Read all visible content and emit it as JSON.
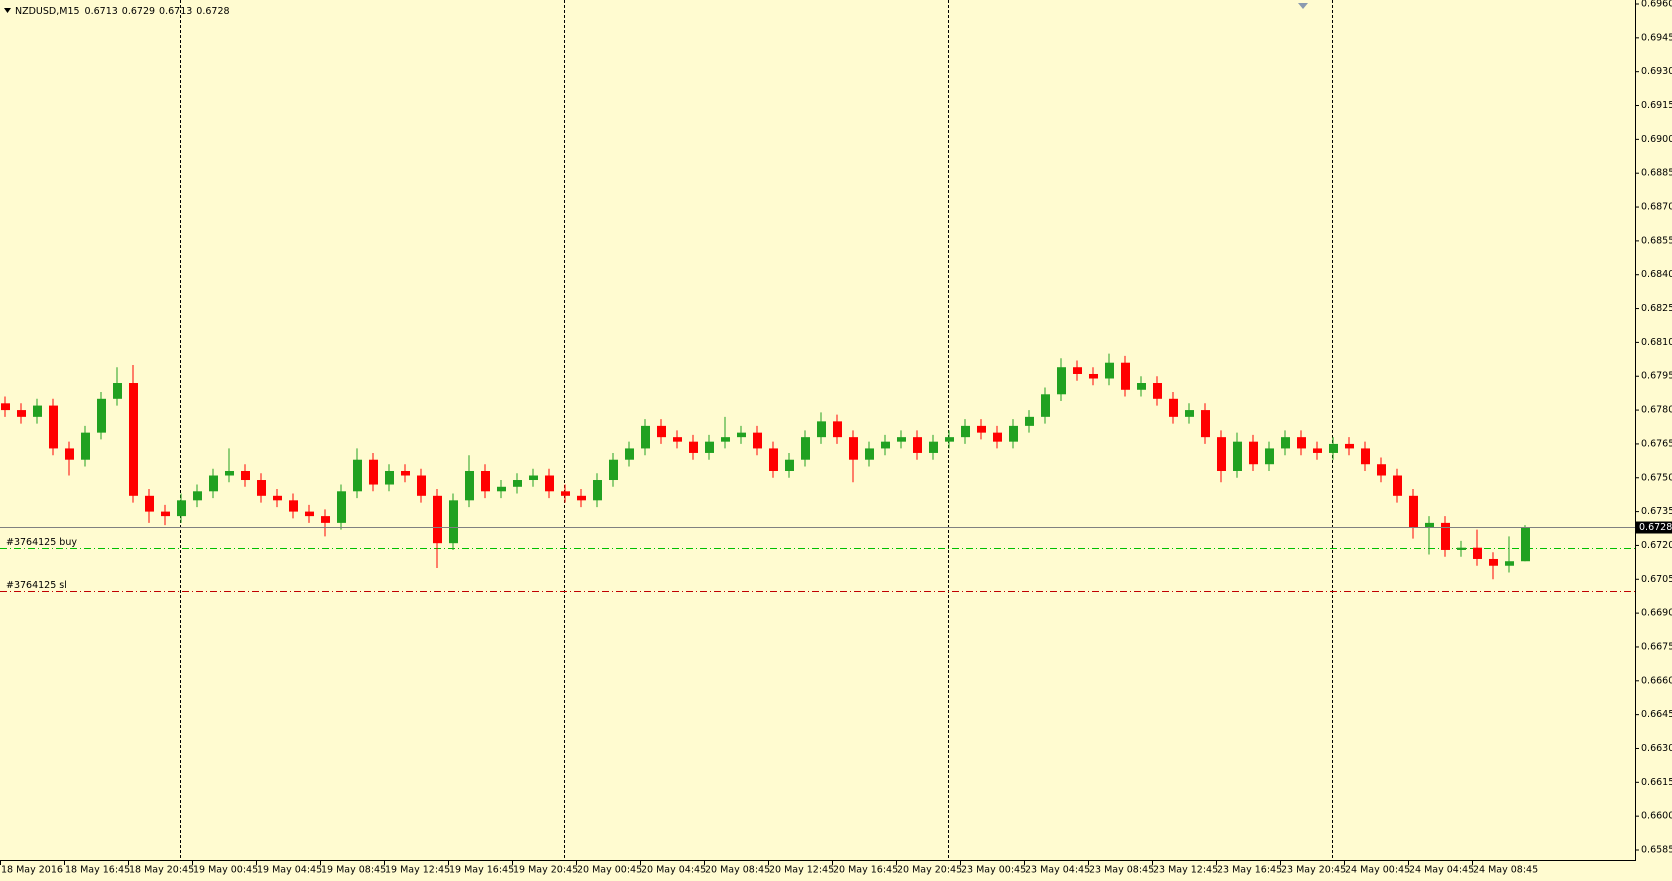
{
  "chart_data": {
    "type": "candlestick",
    "title": "NZDUSD,M15",
    "header_values": [
      0.6713,
      0.6729,
      0.6713,
      0.6728
    ],
    "background": "#fffbd0",
    "up_color": "#21a121",
    "down_color": "#ff0000",
    "open": [
      0.6783,
      0.678,
      0.6777,
      0.6782,
      0.6763,
      0.6758,
      0.677,
      0.6785,
      0.6792,
      0.6742,
      0.6735,
      0.6733,
      0.674,
      0.6744,
      0.6751,
      0.6753,
      0.6749,
      0.6742,
      0.674,
      0.6735,
      0.6733,
      0.673,
      0.6744,
      0.6758,
      0.6747,
      0.6753,
      0.6751,
      0.6742,
      0.6721,
      0.674,
      0.6753,
      0.6744,
      0.6746,
      0.6749,
      0.6751,
      0.6744,
      0.6742,
      0.674,
      0.6749,
      0.6758,
      0.6763,
      0.6773,
      0.6768,
      0.6766,
      0.6761,
      0.6766,
      0.6768,
      0.677,
      0.6763,
      0.6753,
      0.6758,
      0.6768,
      0.6775,
      0.6768,
      0.6758,
      0.6763,
      0.6766,
      0.6768,
      0.6761,
      0.6766,
      0.6768,
      0.6773,
      0.677,
      0.6766,
      0.6773,
      0.6777,
      0.6787,
      0.6799,
      0.6796,
      0.6794,
      0.6801,
      0.6789,
      0.6792,
      0.6785,
      0.6777,
      0.678,
      0.6768,
      0.6753,
      0.6766,
      0.6756,
      0.6763,
      0.6768,
      0.6763,
      0.6761,
      0.6765,
      0.6763,
      0.6756,
      0.6751,
      0.6742,
      0.6728,
      0.673,
      0.6718,
      0.6719,
      0.6714,
      0.6711,
      0.6713
    ],
    "high": [
      0.6786,
      0.6783,
      0.6785,
      0.6785,
      0.6766,
      0.6773,
      0.6788,
      0.6799,
      0.68,
      0.6745,
      0.6738,
      0.6743,
      0.6747,
      0.6754,
      0.6763,
      0.6756,
      0.6752,
      0.6745,
      0.6743,
      0.6738,
      0.6736,
      0.6747,
      0.6763,
      0.6761,
      0.6756,
      0.6756,
      0.6754,
      0.6745,
      0.6743,
      0.676,
      0.6756,
      0.6749,
      0.6752,
      0.6754,
      0.6754,
      0.6747,
      0.6745,
      0.6752,
      0.6761,
      0.6766,
      0.6776,
      0.6776,
      0.6771,
      0.6769,
      0.6769,
      0.6777,
      0.6773,
      0.6773,
      0.6766,
      0.6761,
      0.6771,
      0.6779,
      0.6778,
      0.6771,
      0.6766,
      0.6769,
      0.6771,
      0.6771,
      0.6769,
      0.6771,
      0.6776,
      0.6776,
      0.6773,
      0.6776,
      0.678,
      0.679,
      0.6803,
      0.6802,
      0.6799,
      0.6805,
      0.6804,
      0.6795,
      0.6795,
      0.6788,
      0.6783,
      0.6783,
      0.6771,
      0.677,
      0.6769,
      0.6766,
      0.6771,
      0.6771,
      0.6766,
      0.6768,
      0.6768,
      0.6766,
      0.6759,
      0.6754,
      0.6745,
      0.6733,
      0.6733,
      0.6722,
      0.6727,
      0.6717,
      0.6724,
      0.6729
    ],
    "low": [
      0.6777,
      0.6774,
      0.6774,
      0.676,
      0.6751,
      0.6755,
      0.6767,
      0.6782,
      0.6739,
      0.673,
      0.6729,
      0.673,
      0.6737,
      0.6741,
      0.6748,
      0.6746,
      0.6739,
      0.6737,
      0.6732,
      0.673,
      0.6724,
      0.6727,
      0.6741,
      0.6744,
      0.6744,
      0.6748,
      0.6739,
      0.671,
      0.6718,
      0.6737,
      0.6741,
      0.6741,
      0.6743,
      0.6746,
      0.6741,
      0.6739,
      0.6737,
      0.6737,
      0.6746,
      0.6755,
      0.676,
      0.6765,
      0.6763,
      0.6758,
      0.6758,
      0.6763,
      0.6765,
      0.676,
      0.675,
      0.675,
      0.6755,
      0.6765,
      0.6765,
      0.6748,
      0.6755,
      0.676,
      0.6763,
      0.6758,
      0.6758,
      0.6763,
      0.6765,
      0.6767,
      0.6763,
      0.6763,
      0.677,
      0.6774,
      0.6784,
      0.6793,
      0.6791,
      0.6791,
      0.6786,
      0.6786,
      0.6782,
      0.6774,
      0.6774,
      0.6765,
      0.6748,
      0.675,
      0.6753,
      0.6753,
      0.676,
      0.676,
      0.6758,
      0.6758,
      0.676,
      0.6753,
      0.6748,
      0.6739,
      0.6723,
      0.6716,
      0.6715,
      0.6715,
      0.6711,
      0.6705,
      0.6708,
      0.6713
    ],
    "close": [
      0.678,
      0.6777,
      0.6782,
      0.6763,
      0.6758,
      0.677,
      0.6785,
      0.6792,
      0.6742,
      0.6735,
      0.6733,
      0.674,
      0.6744,
      0.6751,
      0.6753,
      0.6749,
      0.6742,
      0.674,
      0.6735,
      0.6733,
      0.673,
      0.6744,
      0.6758,
      0.6747,
      0.6753,
      0.6751,
      0.6742,
      0.6721,
      0.674,
      0.6753,
      0.6744,
      0.6746,
      0.6749,
      0.6751,
      0.6744,
      0.6742,
      0.674,
      0.6749,
      0.6758,
      0.6763,
      0.6773,
      0.6768,
      0.6766,
      0.6761,
      0.6766,
      0.6768,
      0.677,
      0.6763,
      0.6753,
      0.6758,
      0.6768,
      0.6775,
      0.6768,
      0.6758,
      0.6763,
      0.6766,
      0.6768,
      0.6761,
      0.6766,
      0.6768,
      0.6773,
      0.677,
      0.6766,
      0.6773,
      0.6777,
      0.6787,
      0.6799,
      0.6796,
      0.6794,
      0.6801,
      0.6789,
      0.6792,
      0.6785,
      0.6777,
      0.678,
      0.6768,
      0.6753,
      0.6766,
      0.6756,
      0.6763,
      0.6768,
      0.6763,
      0.6761,
      0.6765,
      0.6763,
      0.6756,
      0.6751,
      0.6742,
      0.6728,
      0.673,
      0.6718,
      0.6719,
      0.6714,
      0.6711,
      0.6713,
      0.6728
    ],
    "xtick_labels": [
      "18 May 2016",
      "18 May 16:45",
      "18 May 20:45",
      "19 May 00:45",
      "19 May 04:45",
      "19 May 08:45",
      "19 May 12:45",
      "19 May 16:45",
      "19 May 20:45",
      "20 May 00:45",
      "20 May 04:45",
      "20 May 08:45",
      "20 May 12:45",
      "20 May 16:45",
      "20 May 20:45",
      "23 May 00:45",
      "23 May 04:45",
      "23 May 08:45",
      "23 May 12:45",
      "23 May 16:45",
      "23 May 20:45",
      "24 May 00:45",
      "24 May 04:45",
      "24 May 08:45"
    ],
    "ylim": [
      0.6585,
      0.696
    ],
    "yticks": [
      {
        "value": 0.6585,
        "label": "0.6585"
      },
      {
        "value": 0.66,
        "label": "0.6600"
      },
      {
        "value": 0.6615,
        "label": "0.6615"
      },
      {
        "value": 0.663,
        "label": "0.6630"
      },
      {
        "value": 0.6645,
        "label": "0.6645"
      },
      {
        "value": 0.666,
        "label": "0.6660"
      },
      {
        "value": 0.6675,
        "label": "0.6675"
      },
      {
        "value": 0.669,
        "label": "0.6690"
      },
      {
        "value": 0.6705,
        "label": "0.6705"
      },
      {
        "value": 0.672,
        "label": "0.6720"
      },
      {
        "value": 0.6735,
        "label": "0.6735"
      },
      {
        "value": 0.675,
        "label": "0.6750"
      },
      {
        "value": 0.6765,
        "label": "0.6765"
      },
      {
        "value": 0.678,
        "label": "0.6780"
      },
      {
        "value": 0.6795,
        "label": "0.6795"
      },
      {
        "value": 0.681,
        "label": "0.6810"
      },
      {
        "value": 0.6825,
        "label": "0.6825"
      },
      {
        "value": 0.684,
        "label": "0.6840"
      },
      {
        "value": 0.6855,
        "label": "0.6855"
      },
      {
        "value": 0.687,
        "label": "0.6870"
      },
      {
        "value": 0.6885,
        "label": "0.6885"
      },
      {
        "value": 0.69,
        "label": "0.6900"
      },
      {
        "value": 0.6915,
        "label": "0.6915"
      },
      {
        "value": 0.693,
        "label": "0.6930"
      },
      {
        "value": 0.6945,
        "label": "0.6945"
      },
      {
        "value": 0.696,
        "label": "0.6960"
      }
    ],
    "current_price": 0.6728,
    "levels": [
      {
        "name": "#3764125 buy",
        "value": 0.6719,
        "color": "#00c000"
      },
      {
        "name": "#3764125 sl",
        "value": 0.67,
        "color": "#c00000"
      }
    ]
  }
}
